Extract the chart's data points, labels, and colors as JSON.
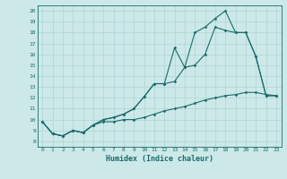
{
  "xlabel": "Humidex (Indice chaleur)",
  "xlim": [
    -0.5,
    23.5
  ],
  "ylim": [
    7.5,
    20.5
  ],
  "xticks": [
    0,
    1,
    2,
    3,
    4,
    5,
    6,
    7,
    8,
    9,
    10,
    11,
    12,
    13,
    14,
    15,
    16,
    17,
    18,
    19,
    20,
    21,
    22,
    23
  ],
  "yticks": [
    8,
    9,
    10,
    11,
    12,
    13,
    14,
    15,
    16,
    17,
    18,
    19,
    20
  ],
  "bg_color": "#cce8e8",
  "grid_color": "#b0d4d4",
  "line_color": "#1a6b6b",
  "line1_x": [
    0,
    1,
    2,
    3,
    4,
    5,
    6,
    7,
    8,
    9,
    10,
    11,
    12,
    13,
    14,
    15,
    16,
    17,
    18,
    19,
    20,
    21,
    22,
    23
  ],
  "line1_y": [
    9.8,
    8.7,
    8.5,
    9.0,
    8.8,
    9.5,
    10.0,
    10.2,
    10.5,
    11.0,
    12.1,
    13.3,
    13.3,
    16.6,
    14.8,
    18.0,
    18.5,
    19.3,
    20.0,
    18.0,
    18.0,
    15.8,
    12.2,
    12.2
  ],
  "line2_x": [
    0,
    1,
    2,
    3,
    4,
    5,
    6,
    7,
    8,
    9,
    10,
    11,
    12,
    13,
    14,
    15,
    16,
    17,
    18,
    19,
    20,
    21,
    22,
    23
  ],
  "line2_y": [
    9.8,
    8.7,
    8.5,
    9.0,
    8.8,
    9.5,
    10.0,
    10.2,
    10.5,
    11.0,
    12.1,
    13.3,
    13.3,
    13.5,
    14.8,
    15.0,
    16.0,
    18.5,
    18.2,
    18.0,
    18.0,
    15.8,
    12.2,
    12.2
  ],
  "line3_x": [
    0,
    1,
    2,
    3,
    4,
    5,
    6,
    7,
    8,
    9,
    10,
    11,
    12,
    13,
    14,
    15,
    16,
    17,
    18,
    19,
    20,
    21,
    22,
    23
  ],
  "line3_y": [
    9.8,
    8.7,
    8.5,
    9.0,
    8.8,
    9.5,
    9.8,
    9.8,
    10.0,
    10.0,
    10.2,
    10.5,
    10.8,
    11.0,
    11.2,
    11.5,
    11.8,
    12.0,
    12.2,
    12.3,
    12.5,
    12.5,
    12.3,
    12.2
  ],
  "tick_fontsize": 4.5,
  "xlabel_fontsize": 6.0,
  "marker_size": 1.8,
  "line_width": 0.8
}
